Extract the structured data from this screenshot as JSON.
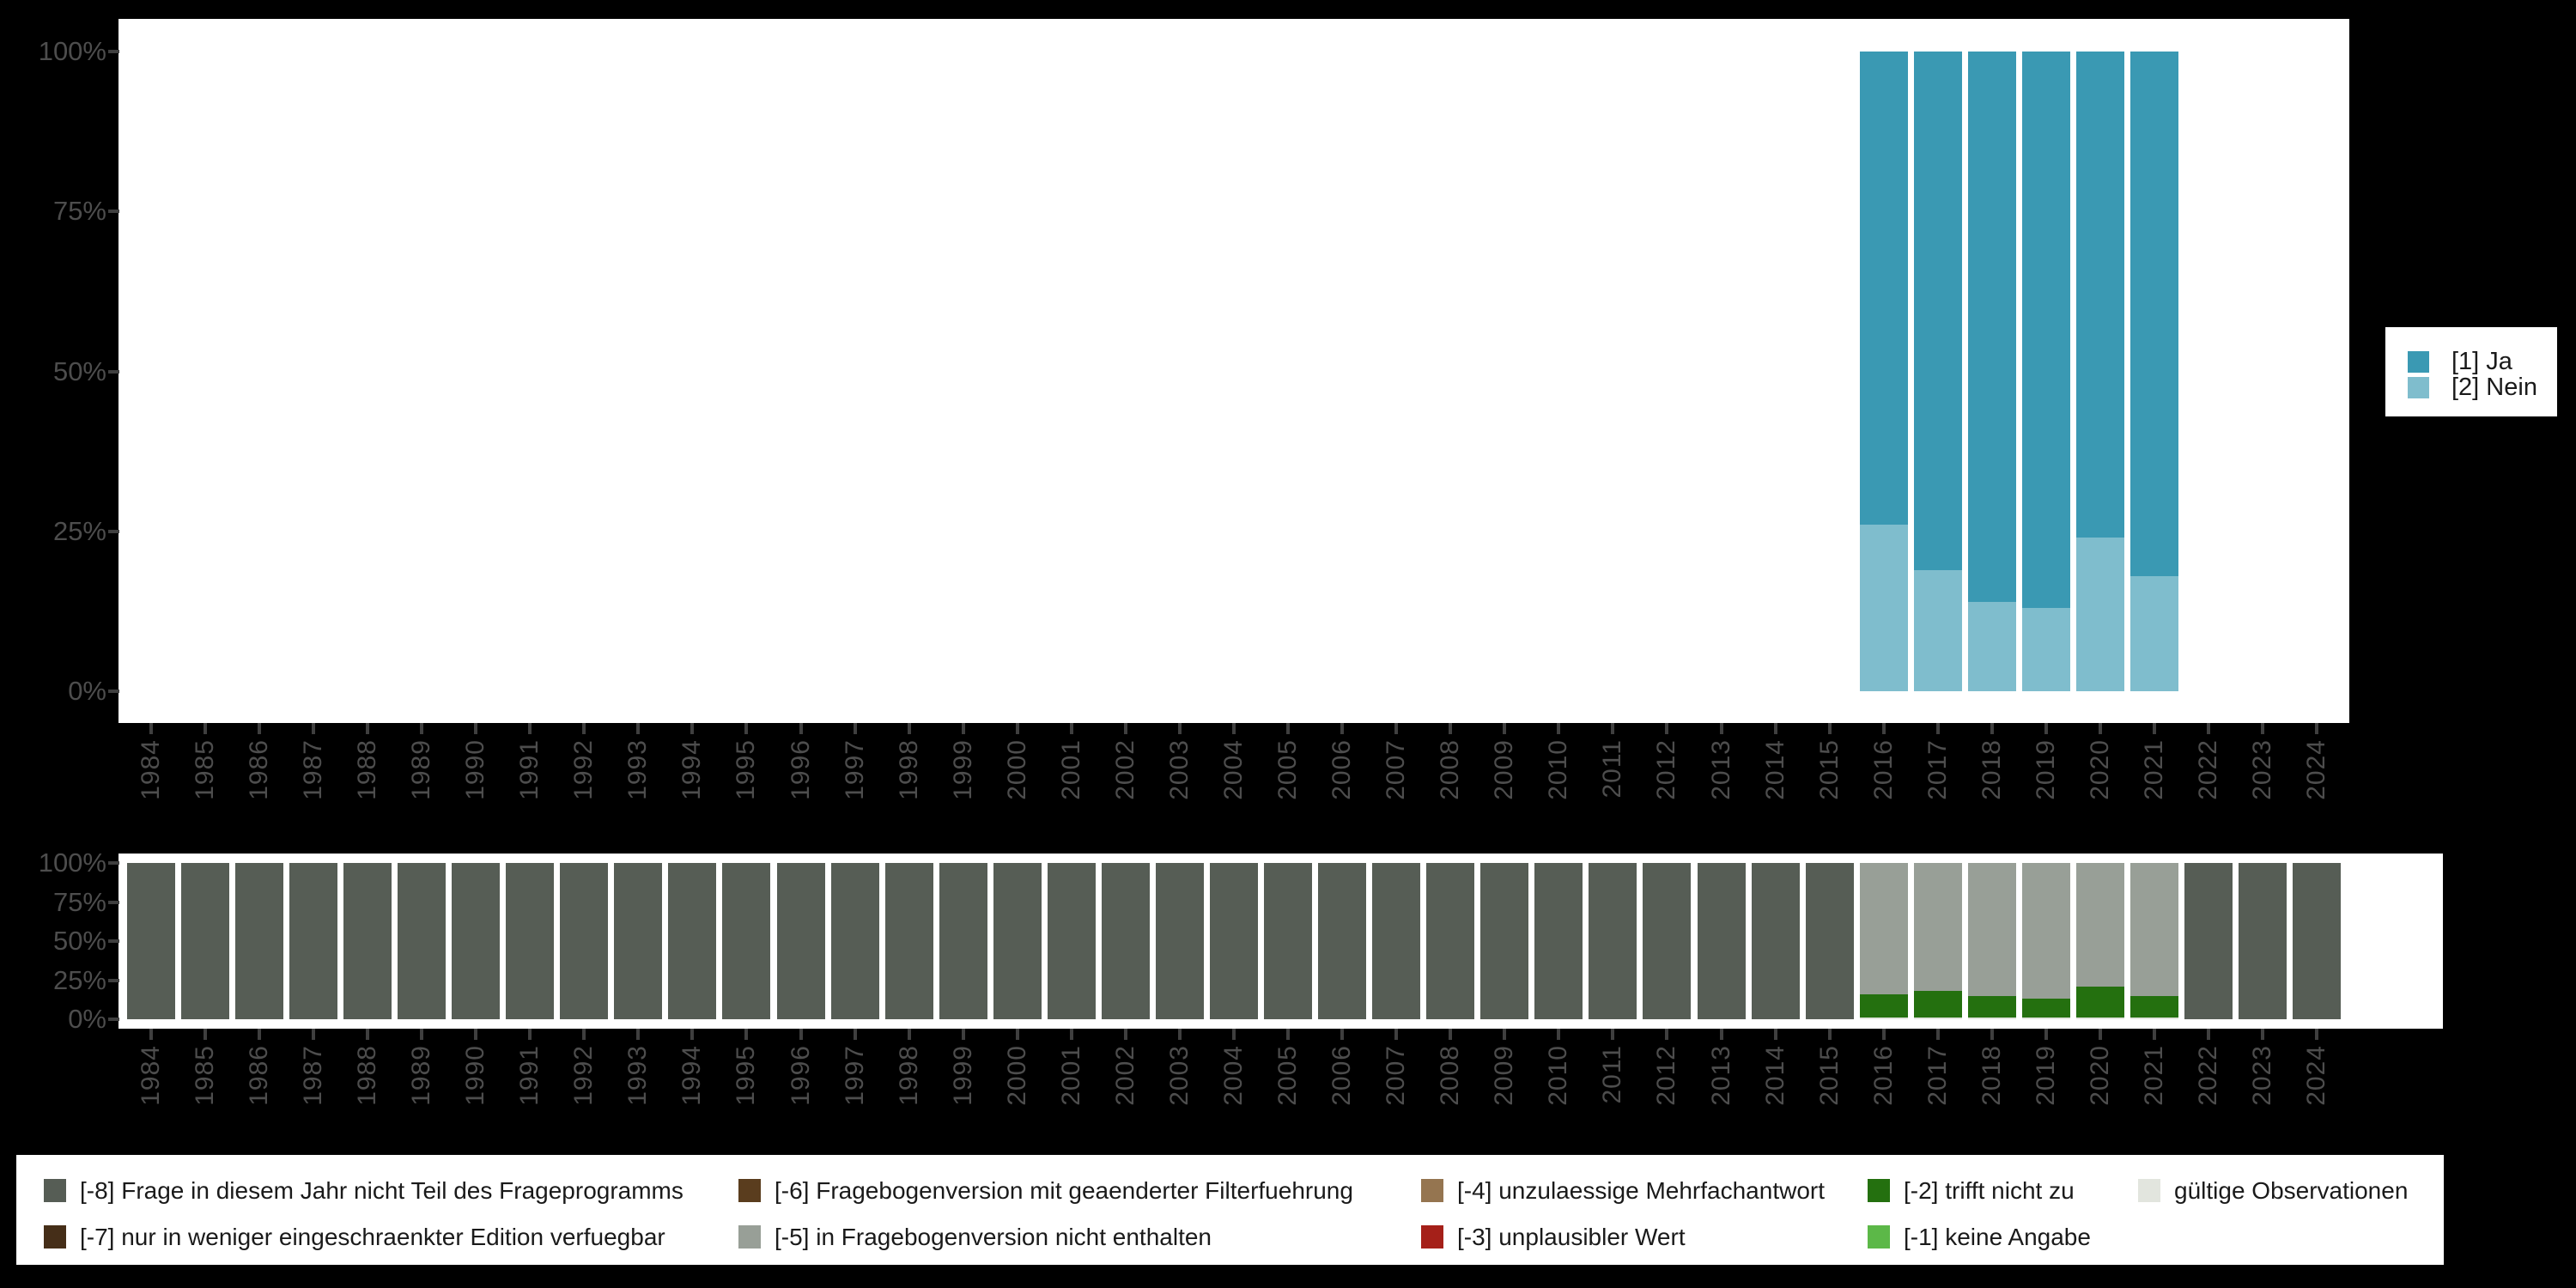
{
  "figure": {
    "background_color": "#000000",
    "panel_background_color": "#ffffff",
    "axis_text_color": "#4d4d4d",
    "tick_color": "#3f3f3f"
  },
  "chart_data": [
    {
      "type": "bar",
      "stacking": "percent",
      "title": "",
      "xlabel": "",
      "ylabel": "",
      "grid": false,
      "legend_position": "right",
      "ylim": [
        0,
        100
      ],
      "y_tick_labels": [
        "100%",
        "75%",
        "50%",
        "25%",
        "0%"
      ],
      "x_tick_label_rotation": 90,
      "categories": [
        "1984",
        "1985",
        "1986",
        "1987",
        "1988",
        "1989",
        "1990",
        "1991",
        "1992",
        "1993",
        "1994",
        "1995",
        "1996",
        "1997",
        "1998",
        "1999",
        "2000",
        "2001",
        "2002",
        "2003",
        "2004",
        "2005",
        "2006",
        "2007",
        "2008",
        "2009",
        "2010",
        "2011",
        "2012",
        "2013",
        "2014",
        "2015",
        "2016",
        "2017",
        "2018",
        "2019",
        "2020",
        "2021",
        "2022",
        "2023",
        "2024"
      ],
      "stack_top_to_bottom": [
        "ja",
        "nein"
      ],
      "series": [
        {
          "key": "ja",
          "name": "[1] Ja",
          "color": "#3a99b3",
          "values_by_year": {
            "2016": 74,
            "2017": 81,
            "2018": 86,
            "2019": 87,
            "2020": 76,
            "2021": 82
          }
        },
        {
          "key": "nein",
          "name": "[2] Nein",
          "color": "#7fbdcd",
          "values_by_year": {
            "2016": 26,
            "2017": 19,
            "2018": 14,
            "2019": 13,
            "2020": 24,
            "2021": 18
          }
        }
      ]
    },
    {
      "type": "bar",
      "stacking": "percent",
      "title": "",
      "xlabel": "",
      "ylabel": "",
      "grid": false,
      "legend_position": "bottom",
      "ylim": [
        0,
        100
      ],
      "y_tick_labels": [
        "100%",
        "75%",
        "50%",
        "25%",
        "0%"
      ],
      "x_tick_label_rotation": 90,
      "categories": [
        "1984",
        "1985",
        "1986",
        "1987",
        "1988",
        "1989",
        "1990",
        "1991",
        "1992",
        "1993",
        "1994",
        "1995",
        "1996",
        "1997",
        "1998",
        "1999",
        "2000",
        "2001",
        "2002",
        "2003",
        "2004",
        "2005",
        "2006",
        "2007",
        "2008",
        "2009",
        "2010",
        "2011",
        "2012",
        "2013",
        "2014",
        "2015",
        "2016",
        "2017",
        "2018",
        "2019",
        "2020",
        "2021",
        "2022",
        "2023",
        "2024"
      ],
      "stack_top_to_bottom": [
        "m5",
        "m2",
        "valid",
        "m8"
      ],
      "series": [
        {
          "key": "m8",
          "name": "[-8] Frage in diesem Jahr nicht Teil des Frageprogramms",
          "color": "#565d55",
          "values_by_year": {
            "1984": 100,
            "1985": 100,
            "1986": 100,
            "1987": 100,
            "1988": 100,
            "1989": 100,
            "1990": 100,
            "1991": 100,
            "1992": 100,
            "1993": 100,
            "1994": 100,
            "1995": 100,
            "1996": 100,
            "1997": 100,
            "1998": 100,
            "1999": 100,
            "2000": 100,
            "2001": 100,
            "2002": 100,
            "2003": 100,
            "2004": 100,
            "2005": 100,
            "2006": 100,
            "2007": 100,
            "2008": 100,
            "2009": 100,
            "2010": 100,
            "2011": 100,
            "2012": 100,
            "2013": 100,
            "2014": 100,
            "2015": 100,
            "2022": 100,
            "2023": 100,
            "2024": 100
          }
        },
        {
          "key": "m5",
          "name": "[-5] in Fragebogenversion nicht enthalten",
          "color": "#989f97",
          "values_by_year": {
            "2016": 84,
            "2017": 82,
            "2018": 85,
            "2019": 87,
            "2020": 79,
            "2021": 85
          }
        },
        {
          "key": "m2",
          "name": "[-2] trifft nicht zu",
          "color": "#24700f",
          "values_by_year": {
            "2016": 15,
            "2017": 17,
            "2018": 14,
            "2019": 12,
            "2020": 20,
            "2021": 14
          }
        },
        {
          "key": "valid",
          "name": "gültige Observationen",
          "color": "#e2e5de",
          "values_by_year": {
            "2016": 1,
            "2017": 1,
            "2018": 1,
            "2019": 1,
            "2020": 1,
            "2021": 1
          }
        },
        {
          "key": "m7",
          "name": "[-7] nur in weniger eingeschraenkter Edition verfuegbar",
          "color": "#452e18",
          "values_by_year": {}
        },
        {
          "key": "m6",
          "name": "[-6] Fragebogenversion mit geaenderter Filterfuehrung",
          "color": "#5a3d1e",
          "values_by_year": {}
        },
        {
          "key": "m4",
          "name": "[-4] unzulaessige Mehrfachantwort",
          "color": "#957550",
          "values_by_year": {}
        },
        {
          "key": "m3",
          "name": "[-3] unplausibler Wert",
          "color": "#a52019",
          "values_by_year": {}
        },
        {
          "key": "m1",
          "name": "[-1] keine Angabe",
          "color": "#5cb848",
          "values_by_year": {}
        }
      ]
    }
  ],
  "bottom_legend": {
    "rows": [
      [
        {
          "key": "m8",
          "label": "[-8] Frage in diesem Jahr nicht Teil des Frageprogramms",
          "color": "#565d55"
        },
        {
          "key": "m6",
          "label": "[-6] Fragebogenversion mit geaenderter Filterfuehrung",
          "color": "#5a3d1e"
        },
        {
          "key": "m4",
          "label": "[-4] unzulaessige Mehrfachantwort",
          "color": "#957550"
        },
        {
          "key": "m2",
          "label": "[-2] trifft nicht zu",
          "color": "#24700f"
        },
        {
          "key": "valid",
          "label": "gültige Observationen",
          "color": "#e2e5de"
        }
      ],
      [
        {
          "key": "m7",
          "label": "[-7] nur in weniger eingeschraenkter Edition verfuegbar",
          "color": "#452e18"
        },
        {
          "key": "m5",
          "label": "[-5] in Fragebogenversion nicht enthalten",
          "color": "#989f97"
        },
        {
          "key": "m3",
          "label": "[-3] unplausibler Wert",
          "color": "#a52019"
        },
        {
          "key": "m1",
          "label": "[-1] keine Angabe",
          "color": "#5cb848"
        }
      ]
    ]
  }
}
